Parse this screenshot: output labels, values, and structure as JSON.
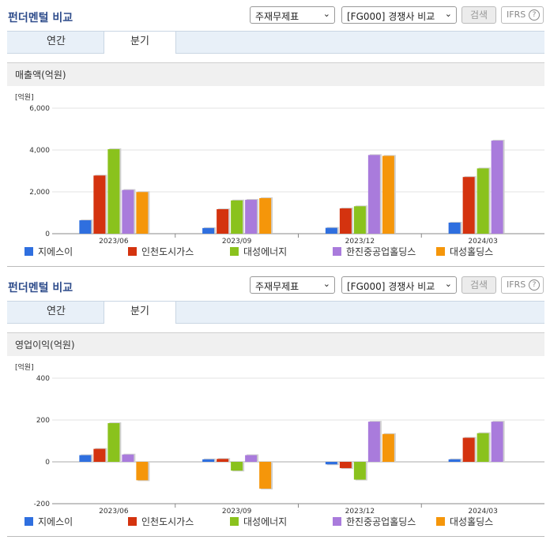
{
  "panels": [
    {
      "title": "펀더멘털 비교",
      "select_type": "주재무제표",
      "select_group": "[FG000] 경쟁사 비교",
      "search_label": "검색",
      "ifrs_label": "IFRS",
      "help_label": "?",
      "tabs": [
        {
          "label": "연간"
        },
        {
          "label": "분기"
        }
      ],
      "active_tab": "분기",
      "section_title": "매출액(억원)"
    },
    {
      "title": "펀더멘털 비교",
      "select_type": "주재무제표",
      "select_group": "[FG000] 경쟁사 비교",
      "search_label": "검색",
      "ifrs_label": "IFRS",
      "help_label": "?",
      "tabs": [
        {
          "label": "연간"
        },
        {
          "label": "분기"
        }
      ],
      "active_tab": "분기",
      "section_title": "영업이익(억원)"
    }
  ],
  "colors": {
    "지에스이": "#2f6fdf",
    "인천도시가스": "#d4330f",
    "대성에너지": "#8ac21d",
    "한진중공업홀딩스": "#a97bdc",
    "대성홀딩스": "#f5960a"
  },
  "chart_data": [
    {
      "type": "bar",
      "unit": "[억원]",
      "categories": [
        "2023/06",
        "2023/09",
        "2023/12",
        "2024/03"
      ],
      "ylim": [
        0,
        6000
      ],
      "yticks": [
        0,
        2000,
        4000,
        6000
      ],
      "ytick_labels": [
        "0",
        "2,000",
        "4,000",
        "6,000"
      ],
      "series": [
        {
          "name": "지에스이",
          "values": [
            640,
            270,
            280,
            530
          ]
        },
        {
          "name": "인천도시가스",
          "values": [
            2780,
            1170,
            1210,
            2710
          ]
        },
        {
          "name": "대성에너지",
          "values": [
            4040,
            1590,
            1310,
            3120
          ]
        },
        {
          "name": "한진중공업홀딩스",
          "values": [
            2090,
            1620,
            3760,
            4450
          ]
        },
        {
          "name": "대성홀딩스",
          "values": [
            1990,
            1700,
            3720,
            null
          ]
        }
      ]
    },
    {
      "type": "bar",
      "unit": "[억원]",
      "categories": [
        "2023/06",
        "2023/09",
        "2023/12",
        "2024/03"
      ],
      "ylim": [
        -200,
        400
      ],
      "yticks": [
        -200,
        0,
        200,
        400
      ],
      "ytick_labels": [
        "-200",
        "0",
        "200",
        "400"
      ],
      "series": [
        {
          "name": "지에스이",
          "values": [
            32,
            12,
            -12,
            12
          ]
        },
        {
          "name": "인천도시가스",
          "values": [
            62,
            14,
            -30,
            115
          ]
        },
        {
          "name": "대성에너지",
          "values": [
            185,
            -42,
            -85,
            137
          ]
        },
        {
          "name": "한진중공업홀딩스",
          "values": [
            35,
            32,
            192,
            192
          ]
        },
        {
          "name": "대성홀딩스",
          "values": [
            -88,
            -128,
            133,
            null
          ]
        }
      ]
    }
  ]
}
